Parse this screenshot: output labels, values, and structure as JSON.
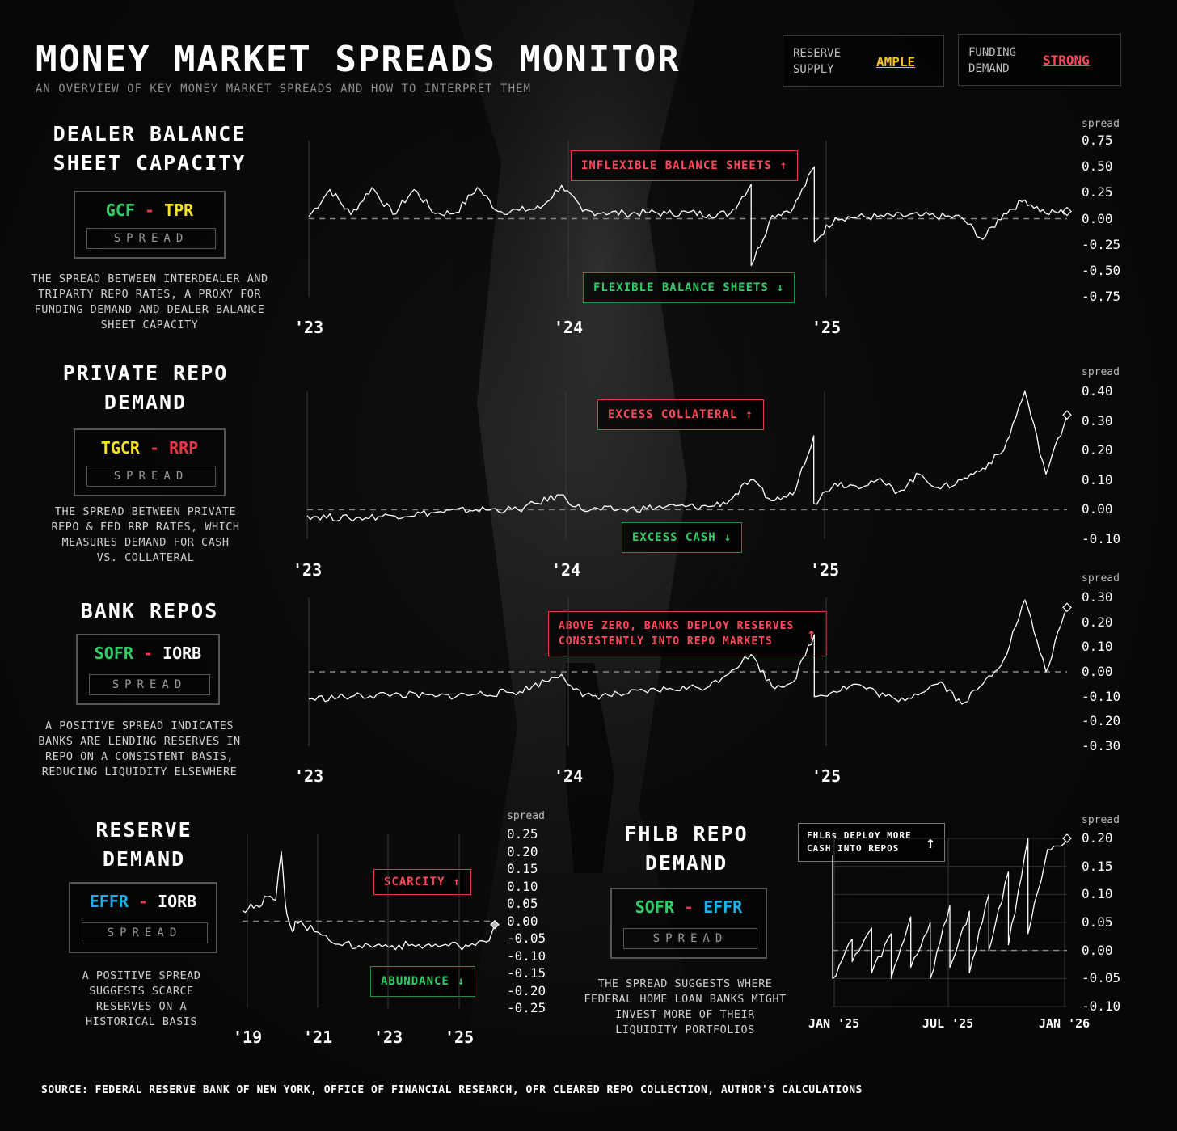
{
  "header": {
    "title": "MONEY MARKET SPREADS MONITOR",
    "subtitle": "AN OVERVIEW OF KEY MONEY MARKET SPREADS AND HOW TO INTERPRET THEM"
  },
  "status": {
    "reserve_label_1": "RESERVE",
    "reserve_label_2": "SUPPLY",
    "reserve_value": "AMPLE",
    "reserve_color": "#f5c518",
    "funding_label_1": "FUNDING",
    "funding_label_2": "DEMAND",
    "funding_value": "STRONG",
    "funding_color": "#ff4a5d"
  },
  "colors": {
    "green": "#2fcf66",
    "yellow": "#f5e12a",
    "red": "#e8354a",
    "blue": "#1fb0e8",
    "white": "#ffffff"
  },
  "sections": {
    "dealer": {
      "title_1": "DEALER BALANCE",
      "title_2": "SHEET CAPACITY",
      "left": "GCF",
      "minus": "-",
      "right": "TPR",
      "tag": "SPREAD",
      "desc": [
        "THE SPREAD BETWEEN INTERDEALER AND",
        "TRIPARTY REPO RATES, A PROXY FOR",
        "FUNDING DEMAND AND DEALER BALANCE",
        "SHEET CAPACITY"
      ],
      "callout_up": "INFLEXIBLE BALANCE SHEETS",
      "callout_down": "FLEXIBLE BALANCE SHEETS"
    },
    "private": {
      "title_1": "PRIVATE REPO",
      "title_2": "DEMAND",
      "left": "TGCR",
      "minus": "-",
      "right": "RRP",
      "tag": "SPREAD",
      "desc": [
        "THE SPREAD BETWEEN PRIVATE",
        "REPO & FED RRP RATES, WHICH",
        "MEASURES DEMAND FOR CASH",
        "VS. COLLATERAL"
      ],
      "callout_up": "EXCESS COLLATERAL",
      "callout_down": "EXCESS CASH"
    },
    "bank": {
      "title_1": "BANK REPOS",
      "left": "SOFR",
      "minus": "-",
      "right": "IORB",
      "tag": "SPREAD",
      "desc": [
        "A POSITIVE SPREAD INDICATES",
        "BANKS ARE LENDING RESERVES IN",
        "REPO ON A CONSISTENT BASIS,",
        "REDUCING LIQUIDITY ELSEWHERE"
      ],
      "callout_up_1": "ABOVE ZERO, BANKS DEPLOY RESERVES",
      "callout_up_2": "CONSISTENTLY INTO REPO MARKETS"
    },
    "reserve": {
      "title_1": "RESERVE",
      "title_2": "DEMAND",
      "left": "EFFR",
      "minus": "-",
      "right": "IORB",
      "tag": "SPREAD",
      "desc": [
        "A POSITIVE SPREAD",
        "SUGGESTS SCARCE",
        "RESERVES ON A",
        "HISTORICAL BASIS"
      ],
      "callout_up": "SCARCITY",
      "callout_down": "ABUNDANCE"
    },
    "fhlb": {
      "title_1": "FHLB REPO",
      "title_2": "DEMAND",
      "left": "SOFR",
      "minus": "-",
      "right": "EFFR",
      "tag": "SPREAD",
      "desc": [
        "THE SPREAD SUGGESTS WHERE",
        "FEDERAL HOME LOAN BANKS MIGHT",
        "INVEST MORE OF THEIR",
        "LIQUIDITY PORTFOLIOS"
      ],
      "callout_up_1": "FHLBs DEPLOY MORE",
      "callout_up_2": "CASH INTO REPOS"
    }
  },
  "chart_data": [
    {
      "type": "line",
      "name": "GCF - TPR spread",
      "y_unit_label": "spread",
      "x_tick_labels": [
        "'23",
        "'24",
        "'25"
      ],
      "y_tick_labels": [
        "0.75",
        "0.50",
        "0.25",
        "0.00",
        "-0.25",
        "-0.50",
        "-0.75"
      ],
      "ylim": [
        -0.75,
        0.75
      ],
      "x_range": [
        "2023-01",
        "2026-01"
      ],
      "points": [
        [
          "2023-01",
          0.02
        ],
        [
          "2023-02",
          0.28
        ],
        [
          "2023-03",
          0.04
        ],
        [
          "2023-04",
          0.3
        ],
        [
          "2023-05",
          0.04
        ],
        [
          "2023-06",
          0.28
        ],
        [
          "2023-07",
          0.05
        ],
        [
          "2023-08",
          0.06
        ],
        [
          "2023-09",
          0.3
        ],
        [
          "2023-10",
          0.07
        ],
        [
          "2023-11",
          0.08
        ],
        [
          "2023-12",
          0.1
        ],
        [
          "2024-01",
          0.32
        ],
        [
          "2024-02",
          0.07
        ],
        [
          "2024-03",
          0.06
        ],
        [
          "2024-04",
          0.05
        ],
        [
          "2024-05",
          0.06
        ],
        [
          "2024-06",
          0.05
        ],
        [
          "2024-07",
          0.06
        ],
        [
          "2024-08",
          0.04
        ],
        [
          "2024-09",
          0.05
        ],
        [
          "2024-10",
          0.33
        ],
        [
          "2024-10",
          -0.45
        ],
        [
          "2024-11",
          0.03
        ],
        [
          "2024-12",
          0.1
        ],
        [
          "2025-01",
          0.5
        ],
        [
          "2025-01",
          -0.22
        ],
        [
          "2025-02",
          0.01
        ],
        [
          "2025-04",
          0.02
        ],
        [
          "2025-06",
          0.03
        ],
        [
          "2025-08",
          0.01
        ],
        [
          "2025-09",
          -0.2
        ],
        [
          "2025-10",
          0.05
        ],
        [
          "2025-11",
          0.18
        ],
        [
          "2025-12",
          0.05
        ],
        [
          "2026-01",
          0.07
        ]
      ],
      "zero_line": true
    },
    {
      "type": "line",
      "name": "TGCR - RRP spread",
      "y_unit_label": "spread",
      "x_tick_labels": [
        "'23",
        "'24",
        "'25"
      ],
      "y_tick_labels": [
        "0.40",
        "0.30",
        "0.20",
        "0.10",
        "0.00",
        "-0.10"
      ],
      "ylim": [
        -0.1,
        0.4
      ],
      "x_range": [
        "2023-01",
        "2026-01"
      ],
      "points": [
        [
          "2023-01",
          -0.02
        ],
        [
          "2023-03",
          -0.03
        ],
        [
          "2023-05",
          -0.02
        ],
        [
          "2023-07",
          -0.01
        ],
        [
          "2023-09",
          0.0
        ],
        [
          "2023-11",
          0.0
        ],
        [
          "2024-01",
          0.05
        ],
        [
          "2024-02",
          0.0
        ],
        [
          "2024-04",
          0.0
        ],
        [
          "2024-06",
          0.01
        ],
        [
          "2024-08",
          0.01
        ],
        [
          "2024-09",
          0.03
        ],
        [
          "2024-10",
          0.1
        ],
        [
          "2024-11",
          0.03
        ],
        [
          "2024-12",
          0.05
        ],
        [
          "2025-01",
          0.25
        ],
        [
          "2025-01",
          0.02
        ],
        [
          "2025-02",
          0.09
        ],
        [
          "2025-03",
          0.08
        ],
        [
          "2025-04",
          0.1
        ],
        [
          "2025-05",
          0.06
        ],
        [
          "2025-06",
          0.12
        ],
        [
          "2025-07",
          0.07
        ],
        [
          "2025-08",
          0.1
        ],
        [
          "2025-09",
          0.14
        ],
        [
          "2025-10",
          0.2
        ],
        [
          "2025-11",
          0.4
        ],
        [
          "2025-12",
          0.12
        ],
        [
          "2026-01",
          0.32
        ]
      ],
      "zero_line": true
    },
    {
      "type": "line",
      "name": "SOFR - IORB spread",
      "y_unit_label": "spread",
      "x_tick_labels": [
        "'23",
        "'24",
        "'25"
      ],
      "y_tick_labels": [
        "0.30",
        "0.20",
        "0.10",
        "0.00",
        "-0.10",
        "-0.20",
        "-0.30"
      ],
      "ylim": [
        -0.3,
        0.3
      ],
      "x_range": [
        "2023-01",
        "2026-01"
      ],
      "points": [
        [
          "2023-01",
          -0.11
        ],
        [
          "2023-03",
          -0.1
        ],
        [
          "2023-05",
          -0.09
        ],
        [
          "2023-07",
          -0.1
        ],
        [
          "2023-09",
          -0.09
        ],
        [
          "2023-11",
          -0.08
        ],
        [
          "2024-01",
          -0.01
        ],
        [
          "2024-02",
          -0.1
        ],
        [
          "2024-04",
          -0.09
        ],
        [
          "2024-06",
          -0.07
        ],
        [
          "2024-08",
          -0.06
        ],
        [
          "2024-10",
          0.07
        ],
        [
          "2024-11",
          -0.06
        ],
        [
          "2024-12",
          -0.04
        ],
        [
          "2025-01",
          0.15
        ],
        [
          "2025-01",
          -0.1
        ],
        [
          "2025-03",
          -0.05
        ],
        [
          "2025-05",
          -0.12
        ],
        [
          "2025-07",
          -0.04
        ],
        [
          "2025-08",
          -0.13
        ],
        [
          "2025-09",
          -0.05
        ],
        [
          "2025-10",
          0.05
        ],
        [
          "2025-11",
          0.29
        ],
        [
          "2025-12",
          0.0
        ],
        [
          "2026-01",
          0.26
        ]
      ],
      "zero_line": true
    },
    {
      "type": "line",
      "name": "EFFR - IORB spread",
      "y_unit_label": "spread",
      "x_tick_labels": [
        "'19",
        "'21",
        "'23",
        "'25"
      ],
      "y_tick_labels": [
        "0.25",
        "0.20",
        "0.15",
        "0.10",
        "0.05",
        "0.00",
        "-0.05",
        "-0.10",
        "-0.15",
        "-0.20",
        "-0.25"
      ],
      "ylim": [
        -0.25,
        0.25
      ],
      "x_range": [
        "2018-06",
        "2026-01"
      ],
      "points": [
        [
          "2018-06",
          0.03
        ],
        [
          "2018-09",
          0.05
        ],
        [
          "2018-12",
          0.04
        ],
        [
          "2019-03",
          0.07
        ],
        [
          "2019-06",
          0.06
        ],
        [
          "2019-08",
          0.2
        ],
        [
          "2019-09",
          0.1
        ],
        [
          "2019-10",
          0.02
        ],
        [
          "2019-12",
          -0.03
        ],
        [
          "2020-01",
          0.0
        ],
        [
          "2020-04",
          -0.01
        ],
        [
          "2020-08",
          -0.03
        ],
        [
          "2020-12",
          -0.04
        ],
        [
          "2021-06",
          -0.07
        ],
        [
          "2021-12",
          -0.07
        ],
        [
          "2022-06",
          -0.07
        ],
        [
          "2022-12",
          -0.07
        ],
        [
          "2023-06",
          -0.07
        ],
        [
          "2023-12",
          -0.07
        ],
        [
          "2024-06",
          -0.07
        ],
        [
          "2024-12",
          -0.07
        ],
        [
          "2025-06",
          -0.07
        ],
        [
          "2025-10",
          -0.06
        ],
        [
          "2026-01",
          -0.01
        ]
      ],
      "zero_line": true
    },
    {
      "type": "line",
      "name": "SOFR - EFFR spread",
      "y_unit_label": "spread",
      "x_tick_labels": [
        "JAN '25",
        "JUL '25",
        "JAN '26"
      ],
      "y_tick_labels": [
        "0.20",
        "0.15",
        "0.10",
        "0.05",
        "0.00",
        "-0.05",
        "-0.10"
      ],
      "ylim": [
        -0.1,
        0.2
      ],
      "x_range": [
        "2025-01",
        "2026-01"
      ],
      "points": [
        [
          "2025-01",
          0.17
        ],
        [
          "2025-01",
          -0.05
        ],
        [
          "2025-02",
          0.02
        ],
        [
          "2025-02",
          -0.02
        ],
        [
          "2025-03",
          0.04
        ],
        [
          "2025-03",
          -0.04
        ],
        [
          "2025-04",
          0.03
        ],
        [
          "2025-04",
          -0.05
        ],
        [
          "2025-05",
          0.06
        ],
        [
          "2025-05",
          -0.03
        ],
        [
          "2025-06",
          0.05
        ],
        [
          "2025-06",
          -0.05
        ],
        [
          "2025-07",
          0.08
        ],
        [
          "2025-07",
          -0.03
        ],
        [
          "2025-08",
          0.07
        ],
        [
          "2025-08",
          -0.04
        ],
        [
          "2025-09",
          0.1
        ],
        [
          "2025-09",
          0.0
        ],
        [
          "2025-10",
          0.14
        ],
        [
          "2025-10",
          0.01
        ],
        [
          "2025-11",
          0.2
        ],
        [
          "2025-11",
          0.03
        ],
        [
          "2025-12",
          0.18
        ],
        [
          "2026-01",
          0.2
        ]
      ],
      "zero_line": true
    }
  ],
  "source": "SOURCE: FEDERAL RESERVE BANK OF NEW YORK, OFFICE OF FINANCIAL RESEARCH, OFR CLEARED REPO COLLECTION, AUTHOR'S CALCULATIONS"
}
